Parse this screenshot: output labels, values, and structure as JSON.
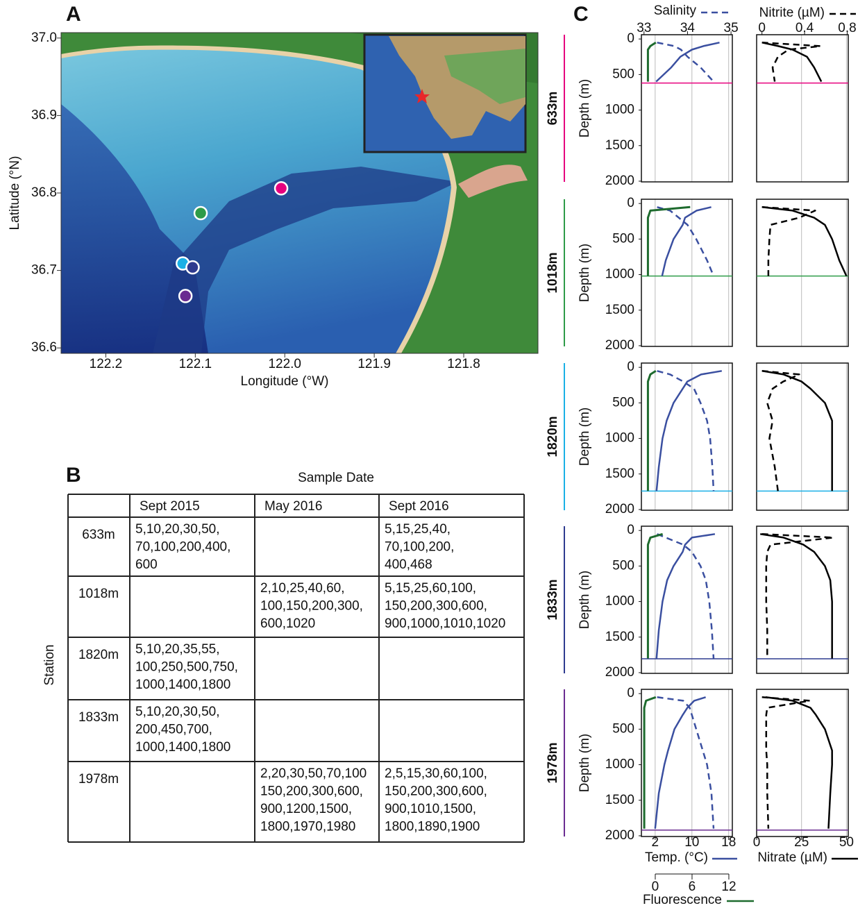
{
  "panel_labels": {
    "a": "A",
    "b": "B",
    "c": "C"
  },
  "chart_data": [
    {
      "type": "scatter",
      "xlabel": "Longitude (°W)",
      "ylabel": "Latitude (°N)",
      "xlim": [
        122.25,
        121.717
      ],
      "ylim": [
        36.593,
        37.007
      ],
      "xticks": [
        122.2,
        122.1,
        {
          "value": 122,
          "label": "122.0"
        },
        121.9,
        121.8
      ],
      "yticks": [
        36.6,
        36.7,
        36.8,
        36.9,
        {
          "value": 37,
          "label": "37.0"
        }
      ],
      "x": [
        122.004,
        122.094,
        122.114,
        122.103,
        122.111
      ],
      "y": [
        36.806,
        36.774,
        36.709,
        36.704,
        36.667
      ],
      "colors": [
        "#e6007e",
        "#2e9b48",
        "#1ab0e6",
        "#2e3b8f",
        "#6a2c91"
      ]
    },
    {
      "type": "profile",
      "depth_label": "Depth (m)",
      "depth_lim": [
        -60,
        2010
      ],
      "depth_ticks": [
        0,
        500,
        1000,
        1500,
        2000
      ],
      "grid": true,
      "variables": {
        "temperature": {
          "label": "Temp. (°C)",
          "color": "#3a4fa0",
          "style": "solid",
          "xlim": [
            -1,
            18.8
          ],
          "ticks": [
            2,
            10,
            18
          ]
        },
        "salinity": {
          "label": "Salinity",
          "color": "#3a4fa0",
          "style": "dashed",
          "xlim": [
            32.94,
            35.03
          ],
          "ticks": [
            33,
            34,
            35
          ]
        },
        "fluorescence": {
          "label": "Fluorescence",
          "color": "#1e6b2e",
          "style": "solid",
          "xlim": [
            -2.26,
            12.57
          ],
          "ticks": [
            0,
            6,
            12
          ]
        },
        "nitrite": {
          "label": "Nitrite (µM)",
          "color": "#000000",
          "style": "dashed",
          "xlim": [
            -0.05,
            0.81
          ],
          "ticks": [
            0,
            0.4,
            0.8
          ]
        },
        "nitrate": {
          "label": "Nitrate (µM)",
          "color": "#000000",
          "style": "solid",
          "xlim": [
            0,
            51
          ],
          "ticks": [
            0,
            25,
            50
          ]
        }
      },
      "stations": [
        {
          "name": "633m",
          "color": "#e6007e",
          "bottom": 620,
          "depth": [
            50,
            100,
            150,
            250,
            400,
            600
          ],
          "temperature": [
            16.0,
            12.5,
            10.0,
            7.5,
            5.5,
            2.2
          ],
          "salinity": [
            33.3,
            33.7,
            33.85,
            34.0,
            34.3,
            34.6
          ],
          "fluorescence": [
            0.1,
            -0.8,
            -1.2,
            -1.2,
            -1.2,
            -1.2
          ],
          "nitrite": [
            0.0,
            0.55,
            0.25,
            0.15,
            0.1,
            0.12
          ],
          "nitrate": [
            3,
            12,
            20,
            28,
            32,
            36
          ]
        },
        {
          "name": "1018m",
          "color": "#2e9b48",
          "bottom": 1020,
          "depth": [
            50,
            100,
            200,
            300,
            500,
            800,
            1020
          ],
          "temperature": [
            14.2,
            11,
            8.5,
            8,
            6,
            4.3,
            3.5
          ],
          "salinity": [
            33.3,
            33.6,
            33.8,
            34.0,
            34.2,
            34.45,
            34.6
          ],
          "fluorescence": [
            5.7,
            -0.8,
            -1.2,
            -1.2,
            -1.2,
            -1.2,
            -1.2
          ],
          "nitrite": [
            0.0,
            0.5,
            0.35,
            0.08,
            0.07,
            0.06,
            0.06
          ],
          "nitrate": [
            3,
            20,
            32,
            38,
            42,
            46,
            50
          ]
        },
        {
          "name": "1820m",
          "color": "#1ab0e6",
          "bottom": 1740,
          "depth": [
            50,
            100,
            200,
            300,
            500,
            750,
            1000,
            1400,
            1740
          ],
          "temperature": [
            16.5,
            12,
            9,
            8,
            6,
            4.5,
            3.6,
            2.8,
            2.3
          ],
          "salinity": [
            33.3,
            33.6,
            33.9,
            34.15,
            34.3,
            34.45,
            34.52,
            34.57,
            34.6
          ],
          "fluorescence": [
            0.1,
            -0.8,
            -1.2,
            -1.2,
            -1.2,
            -1.2,
            -1.2,
            -1.2,
            -1.2
          ],
          "nitrite": [
            0.0,
            0.35,
            0.2,
            0.1,
            0.05,
            0.1,
            0.07,
            0.12,
            0.15
          ],
          "nitrate": [
            3,
            15,
            25,
            30,
            38,
            42,
            42,
            42,
            42
          ]
        },
        {
          "name": "1833m",
          "color": "#2e3b8f",
          "bottom": 1805,
          "depth": [
            50,
            100,
            200,
            300,
            500,
            700,
            1000,
            1400,
            1800
          ],
          "temperature": [
            15,
            10,
            8.5,
            8,
            6,
            4.6,
            3.6,
            2.8,
            2.3
          ],
          "salinity": [
            33.3,
            33.5,
            33.9,
            34.1,
            34.3,
            34.42,
            34.5,
            34.56,
            34.6
          ],
          "fluorescence": [
            1.2,
            -0.8,
            -1.2,
            -1.2,
            -1.2,
            -1.2,
            -1.2,
            -1.2,
            -1.2
          ],
          "nitrite": [
            0.0,
            0.67,
            0.08,
            0.05,
            0.04,
            0.04,
            0.04,
            0.05,
            0.05
          ],
          "nitrate": [
            2,
            15,
            26,
            32,
            38,
            41,
            42,
            42,
            42
          ]
        },
        {
          "name": "1978m",
          "color": "#6a2c91",
          "bottom": 1920,
          "depth": [
            50,
            100,
            200,
            300,
            500,
            800,
            1000,
            1400,
            1900
          ],
          "temperature": [
            13,
            10.5,
            9,
            8,
            6.2,
            4.8,
            4,
            2.8,
            2
          ],
          "salinity": [
            33.3,
            33.9,
            34.05,
            34.1,
            34.2,
            34.35,
            34.45,
            34.55,
            34.6
          ],
          "fluorescence": [
            0.1,
            -1.5,
            -1.8,
            -1.8,
            -1.8,
            -1.8,
            -1.8,
            -1.8,
            -1.8
          ],
          "nitrite": [
            0.0,
            0.45,
            0.05,
            0.04,
            0.04,
            0.04,
            0.05,
            0.05,
            0.06
          ],
          "nitrate": [
            5,
            20,
            30,
            33,
            38,
            42,
            42,
            41,
            40
          ]
        }
      ]
    }
  ],
  "table": {
    "title": "Sample Date",
    "row_header": "Station",
    "columns": [
      "Sept 2015",
      "May 2016",
      "Sept 2016"
    ],
    "rows": [
      {
        "station": "633m",
        "color": "#e6007e",
        "cells": [
          [
            "5,10,20,30,50,",
            "70,100,200,400,",
            "600"
          ],
          [],
          [
            "5,15,25,40,",
            "70,100,200,",
            "400,468"
          ]
        ]
      },
      {
        "station": "1018m",
        "color": "#2e9b48",
        "cells": [
          [],
          [
            "2,10,25,40,60,",
            "100,150,200,300,",
            "600,1020"
          ],
          [
            "5,15,25,60,100,",
            "150,200,300,600,",
            "900,1000,1010,1020"
          ]
        ]
      },
      {
        "station": "1820m",
        "color": "#1ab0e6",
        "cells": [
          [
            "5,10,20,35,55,",
            "100,250,500,750,",
            "1000,1400,1800"
          ],
          [],
          []
        ]
      },
      {
        "station": "1833m",
        "color": "#2e3b8f",
        "cells": [
          [
            "5,10,20,30,50,",
            "200,450,700,",
            "1000,1400,1800"
          ],
          [],
          []
        ]
      },
      {
        "station": "1978m",
        "color": "#6a2c91",
        "cells": [
          [],
          [
            "2,20,30,50,70,100",
            "150,200,300,600,",
            "900,1200,1500,",
            "1800,1970,1980"
          ],
          [
            "2,5,15,30,60,100,",
            "150,200,300,600,",
            "900,1010,1500,",
            "1800,1890,1900"
          ]
        ]
      }
    ]
  }
}
